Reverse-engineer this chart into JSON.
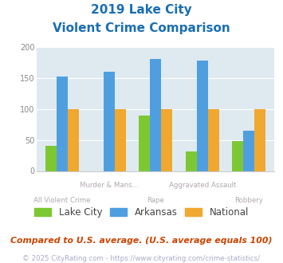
{
  "title_line1": "2019 Lake City",
  "title_line2": "Violent Crime Comparison",
  "categories": [
    "All Violent Crime",
    "Murder & Mans...",
    "Rape",
    "Aggravated Assault",
    "Robbery"
  ],
  "series": {
    "Lake City": [
      41,
      0,
      90,
      31,
      48
    ],
    "Arkansas": [
      153,
      160,
      181,
      179,
      65
    ],
    "National": [
      100,
      100,
      100,
      100,
      100
    ]
  },
  "colors": {
    "Lake City": "#7dc832",
    "Arkansas": "#4f9fe0",
    "National": "#f0a830"
  },
  "ylim": [
    0,
    200
  ],
  "yticks": [
    0,
    50,
    100,
    150,
    200
  ],
  "plot_bg": "#deeaf0",
  "title_color": "#1a6eb5",
  "xlabel_color": "#b0a8b0",
  "legend_text_color": "#444444",
  "footnote1": "Compared to U.S. average. (U.S. average equals 100)",
  "footnote2": "© 2025 CityRating.com - https://www.cityrating.com/crime-statistics/",
  "footnote1_color": "#cc4400",
  "footnote2_color": "#aaaacc"
}
